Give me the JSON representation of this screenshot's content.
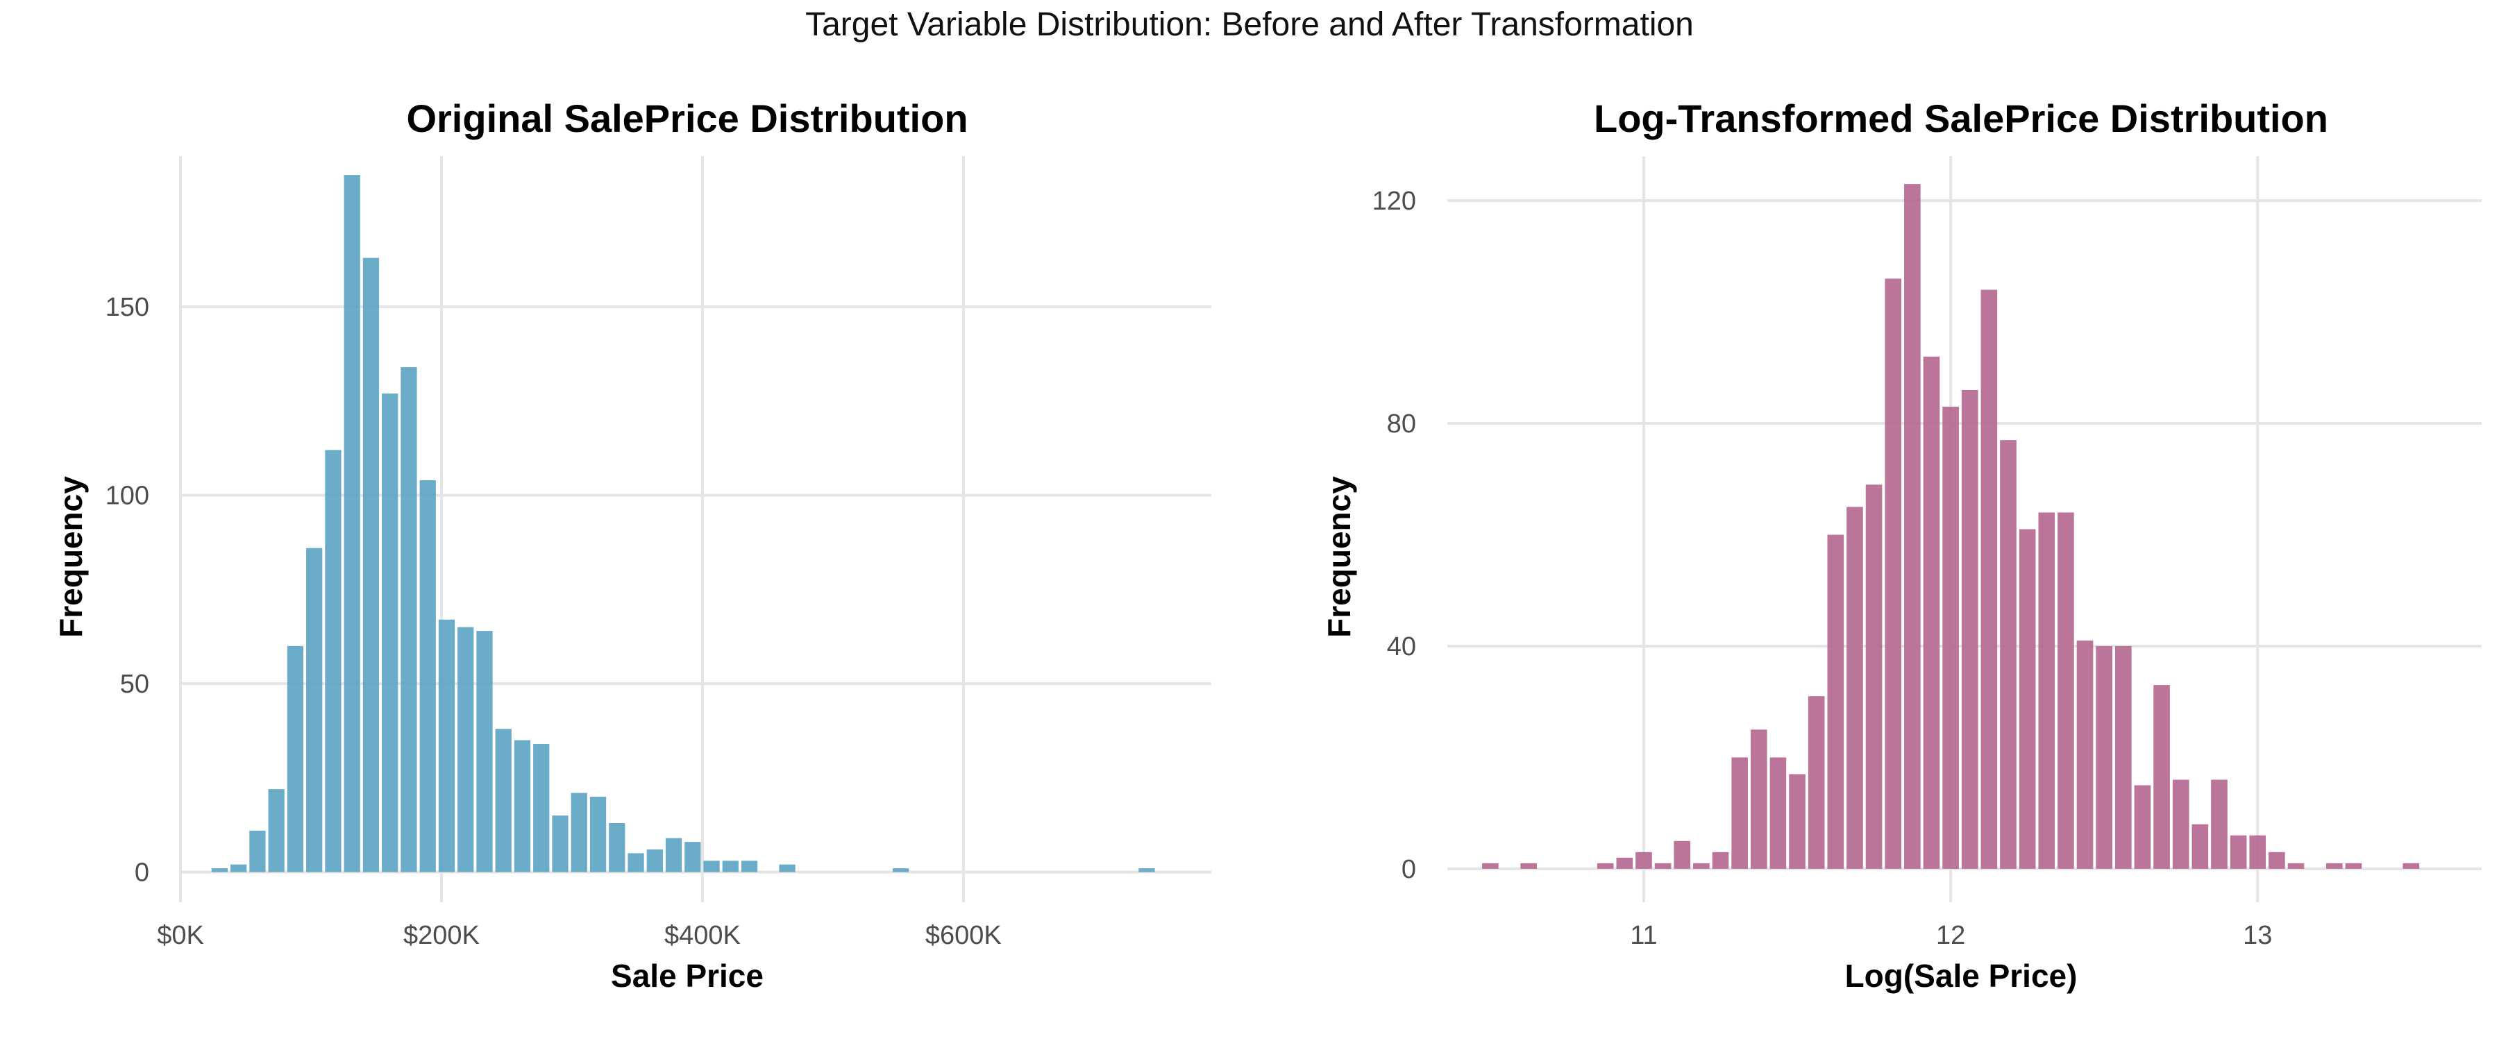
{
  "title": "Target Variable Distribution: Before and After Transformation",
  "chart_data": [
    {
      "type": "bar",
      "title": "Original SalePrice Distribution",
      "xlabel": "Sale Price",
      "ylabel": "Frequency",
      "color": "#5ba3c2",
      "xlim": [
        0,
        790000
      ],
      "ylim": [
        -8,
        190
      ],
      "xticks": [
        {
          "value": 0,
          "label": "$0K"
        },
        {
          "value": 200000,
          "label": "$200K"
        },
        {
          "value": 400000,
          "label": "$400K"
        },
        {
          "value": 600000,
          "label": "$600K"
        }
      ],
      "yticks": [
        {
          "value": 0,
          "label": "0"
        },
        {
          "value": 50,
          "label": "50"
        },
        {
          "value": 100,
          "label": "100"
        },
        {
          "value": 150,
          "label": "150"
        }
      ],
      "bin_width": 14500,
      "bins_x": [
        30000,
        44500,
        59000,
        73500,
        88000,
        102500,
        117000,
        131500,
        146000,
        160500,
        175000,
        189500,
        204000,
        218500,
        233000,
        247500,
        262000,
        276500,
        291000,
        305500,
        320000,
        334500,
        349000,
        363500,
        378000,
        392500,
        407000,
        421500,
        436000,
        450500,
        465000,
        479500,
        494000,
        508500,
        523000,
        537500,
        552000,
        566500,
        581000,
        595500,
        610000,
        624500,
        639000,
        653500,
        668000,
        682500,
        697000,
        711500,
        726000,
        740500,
        755000
      ],
      "values": [
        1,
        2,
        11,
        22,
        60,
        86,
        112,
        185,
        163,
        127,
        134,
        104,
        67,
        65,
        64,
        38,
        35,
        34,
        15,
        21,
        20,
        13,
        5,
        6,
        9,
        8,
        3,
        3,
        3,
        0,
        2,
        0,
        0,
        0,
        0,
        0,
        1,
        0,
        0,
        0,
        0,
        0,
        0,
        0,
        0,
        0,
        0,
        0,
        0,
        1,
        0
      ]
    },
    {
      "type": "bar",
      "title": "Log-Transformed SalePrice Distribution",
      "xlabel": "Log(Sale Price)",
      "ylabel": "Frequency",
      "color": "#b5668f",
      "xlim": [
        10.36,
        13.73
      ],
      "ylim": [
        -6,
        128
      ],
      "xticks": [
        {
          "value": 11,
          "label": "11"
        },
        {
          "value": 12,
          "label": "12"
        },
        {
          "value": 13,
          "label": "13"
        }
      ],
      "yticks": [
        {
          "value": 0,
          "label": "0"
        },
        {
          "value": 40,
          "label": "40"
        },
        {
          "value": 80,
          "label": "80"
        },
        {
          "value": 120,
          "label": "120"
        }
      ],
      "bin_width": 0.0625,
      "bins_x": [
        10.5,
        10.5625,
        10.625,
        10.6875,
        10.75,
        10.8125,
        10.875,
        10.9375,
        11.0,
        11.0625,
        11.125,
        11.1875,
        11.25,
        11.3125,
        11.375,
        11.4375,
        11.5,
        11.5625,
        11.625,
        11.6875,
        11.75,
        11.8125,
        11.875,
        11.9375,
        12.0,
        12.0625,
        12.125,
        12.1875,
        12.25,
        12.3125,
        12.375,
        12.4375,
        12.5,
        12.5625,
        12.625,
        12.6875,
        12.75,
        12.8125,
        12.875,
        12.9375,
        13.0,
        13.0625,
        13.125,
        13.1875,
        13.25,
        13.3125,
        13.375,
        13.4375,
        13.5,
        13.5625
      ],
      "values": [
        1,
        0,
        1,
        0,
        0,
        0,
        1,
        2,
        3,
        1,
        5,
        1,
        3,
        20,
        25,
        20,
        17,
        31,
        60,
        65,
        69,
        106,
        123,
        92,
        83,
        86,
        104,
        77,
        61,
        64,
        64,
        41,
        40,
        40,
        15,
        33,
        16,
        8,
        16,
        6,
        6,
        3,
        1,
        0,
        1,
        1,
        0,
        0,
        1,
        0
      ]
    }
  ]
}
